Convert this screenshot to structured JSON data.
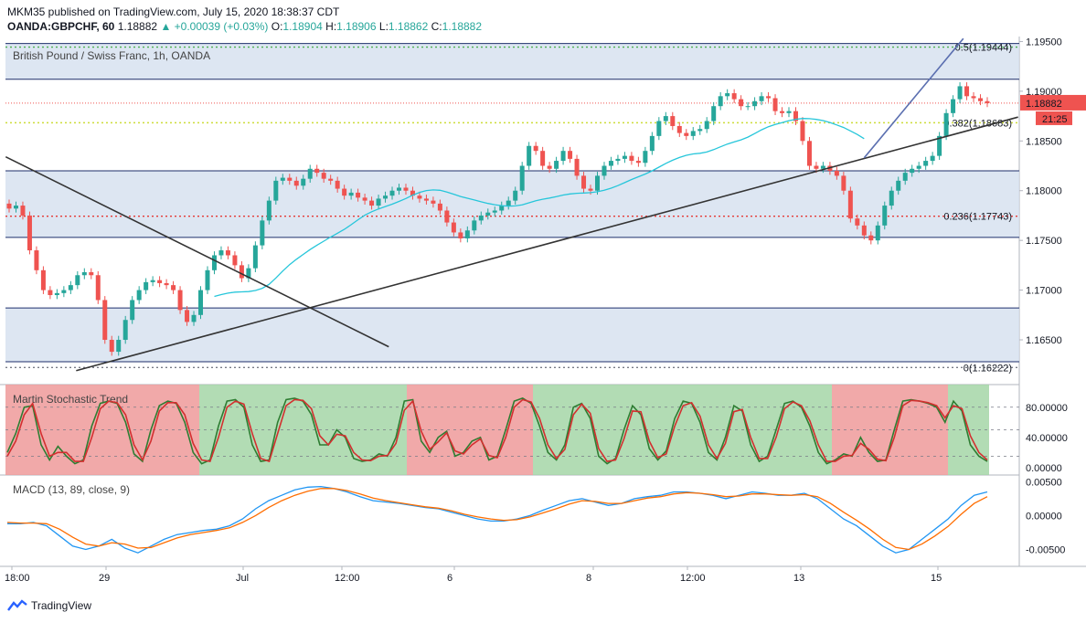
{
  "header": {
    "publisher": "MKM35 published on TradingView.com, July 15, 2020 18:38:37 CDT",
    "symbol": "OANDA:GBPCHF, 60",
    "last": "1.18882",
    "change": "▲ +0.00039 (+0.03%)",
    "o_label": "O:",
    "o_value": "1.18904",
    "h_label": "H:",
    "h_value": "1.18906",
    "l_label": "L:",
    "l_value": "1.18862",
    "c_label": "C:",
    "c_value": "1.18882"
  },
  "footer": {
    "brand": "TradingView"
  },
  "colors": {
    "up": "#26a69a",
    "down": "#ef5350",
    "zone": "#d5e0ef",
    "fib_green": "#4caf50",
    "fib_yellow": "#cddc39",
    "fib_red": "#e53935"
  },
  "chart_data": [
    {
      "type": "line",
      "title": "British Pound / Swiss Franc, 1h, OANDA",
      "x_ticks": [
        "18:00",
        "29",
        "Jul",
        "12:00",
        "6",
        "8",
        "12:00",
        "13",
        "15"
      ],
      "y_ticks": [
        "1.19500",
        "1.19000",
        "1.18500",
        "1.18000",
        "1.17500",
        "1.17000",
        "1.16500"
      ],
      "ylim": [
        1.1605,
        1.1955
      ],
      "last_price_label": "1.18882",
      "countdown_label": "21:25",
      "fib_levels": [
        {
          "label": "0.5(1.19444)",
          "value": 1.19444,
          "color": "#4caf50"
        },
        {
          "label": "0.382(1.18683)",
          "value": 1.18683,
          "color": "#cddc39"
        },
        {
          "label": "0.236(1.17743)",
          "value": 1.17743,
          "color": "#e53935"
        },
        {
          "label": "0(1.16222)",
          "value": 1.16222,
          "color": "#787b86"
        }
      ],
      "zones": [
        [
          1.1912,
          1.1948
        ],
        [
          1.1753,
          1.182
        ],
        [
          1.1628,
          1.1682
        ]
      ],
      "price_close": [
        1.1782,
        1.1785,
        1.1775,
        1.174,
        1.172,
        1.17,
        1.1695,
        1.1697,
        1.17,
        1.1705,
        1.1715,
        1.1718,
        1.1715,
        1.169,
        1.165,
        1.1638,
        1.165,
        1.167,
        1.169,
        1.17,
        1.1708,
        1.171,
        1.1707,
        1.1705,
        1.17,
        1.168,
        1.1668,
        1.1675,
        1.17,
        1.172,
        1.1735,
        1.174,
        1.1735,
        1.1725,
        1.1712,
        1.1722,
        1.1745,
        1.177,
        1.179,
        1.181,
        1.1813,
        1.181,
        1.1805,
        1.1812,
        1.1822,
        1.1818,
        1.1812,
        1.181,
        1.1802,
        1.1795,
        1.1798,
        1.1793,
        1.179,
        1.1785,
        1.1792,
        1.1795,
        1.18,
        1.1803,
        1.18,
        1.1795,
        1.1792,
        1.179,
        1.1787,
        1.178,
        1.1768,
        1.1758,
        1.1752,
        1.176,
        1.177,
        1.1775,
        1.1778,
        1.178,
        1.1785,
        1.179,
        1.18,
        1.1825,
        1.1845,
        1.184,
        1.1825,
        1.1822,
        1.183,
        1.184,
        1.1832,
        1.1815,
        1.1802,
        1.18,
        1.1815,
        1.1825,
        1.183,
        1.1832,
        1.1835,
        1.183,
        1.1828,
        1.184,
        1.1855,
        1.187,
        1.1875,
        1.1865,
        1.1858,
        1.1855,
        1.186,
        1.1862,
        1.187,
        1.1885,
        1.1895,
        1.1898,
        1.1892,
        1.1885,
        1.1885,
        1.189,
        1.1895,
        1.1893,
        1.188,
        1.1878,
        1.188,
        1.187,
        1.185,
        1.1825,
        1.1822,
        1.1825,
        1.182,
        1.1815,
        1.18,
        1.1772,
        1.1765,
        1.1755,
        1.175,
        1.1765,
        1.1785,
        1.18,
        1.181,
        1.1818,
        1.1822,
        1.1825,
        1.183,
        1.1835,
        1.1855,
        1.1878,
        1.1892,
        1.1905,
        1.1895,
        1.1893,
        1.189,
        1.1888
      ]
    },
    {
      "type": "line",
      "title": "Martin Stochastic Trend",
      "y_ticks": [
        "80.00000",
        "40.00000",
        "0.00000"
      ],
      "ylim": [
        -10,
        110
      ],
      "series": [
        {
          "values": [
            20,
            45,
            80,
            82,
            30,
            10,
            28,
            15,
            5,
            10,
            55,
            85,
            88,
            85,
            60,
            18,
            8,
            50,
            82,
            88,
            85,
            60,
            20,
            5,
            10,
            55,
            88,
            90,
            80,
            30,
            8,
            10,
            60,
            90,
            92,
            88,
            70,
            30,
            30,
            50,
            40,
            12,
            8,
            10,
            18,
            15,
            40,
            88,
            90,
            35,
            20,
            40,
            48,
            15,
            20,
            35,
            40,
            10,
            15,
            50,
            88,
            92,
            85,
            55,
            20,
            10,
            30,
            80,
            85,
            65,
            15,
            5,
            12,
            50,
            82,
            70,
            25,
            10,
            22,
            65,
            88,
            85,
            60,
            20,
            10,
            40,
            82,
            75,
            30,
            8,
            15,
            50,
            85,
            88,
            80,
            55,
            20,
            5,
            10,
            18,
            15,
            40,
            20,
            8,
            10,
            50,
            88,
            90,
            88,
            85,
            80,
            60,
            88,
            75,
            30,
            15,
            8
          ]
        },
        {
          "values": [
            15,
            35,
            70,
            85,
            45,
            15,
            20,
            20,
            8,
            8,
            40,
            78,
            88,
            86,
            70,
            30,
            10,
            35,
            75,
            86,
            86,
            70,
            32,
            10,
            8,
            40,
            80,
            88,
            84,
            45,
            12,
            8,
            45,
            82,
            90,
            89,
            78,
            42,
            30,
            44,
            42,
            20,
            10,
            9,
            15,
            16,
            32,
            76,
            88,
            48,
            24,
            34,
            46,
            22,
            18,
            30,
            38,
            16,
            13,
            40,
            80,
            90,
            87,
            65,
            30,
            12,
            24,
            70,
            84,
            72,
            25,
            8,
            10,
            38,
            75,
            74,
            35,
            13,
            18,
            55,
            82,
            86,
            68,
            30,
            12,
            32,
            74,
            77,
            40,
            12,
            12,
            40,
            78,
            87,
            82,
            62,
            30,
            8,
            8,
            15,
            16,
            32,
            24,
            11,
            9,
            40,
            82,
            89,
            88,
            86,
            82,
            66,
            82,
            78,
            42,
            20,
            10
          ]
        }
      ],
      "trend_bands": [
        "down",
        "up",
        "down",
        "up",
        "down",
        "up",
        "down"
      ]
    },
    {
      "type": "line",
      "title": "MACD (13, 89, close, 9)",
      "y_ticks": [
        "0.00500",
        "0.00000",
        "-0.00500"
      ],
      "ylim": [
        -0.0075,
        0.006
      ],
      "series": [
        {
          "values": [
            -0.0012,
            -0.0012,
            -0.001,
            -0.0015,
            -0.003,
            -0.0045,
            -0.005,
            -0.0045,
            -0.0035,
            -0.0048,
            -0.0055,
            -0.0045,
            -0.0035,
            -0.0028,
            -0.0025,
            -0.0022,
            -0.002,
            -0.0015,
            -0.0005,
            0.001,
            0.0022,
            0.003,
            0.0038,
            0.0042,
            0.0043,
            0.004,
            0.0035,
            0.0028,
            0.0022,
            0.002,
            0.0018,
            0.0015,
            0.0012,
            0.001,
            0.0005,
            0.0,
            -0.0005,
            -0.0008,
            -0.0008,
            -0.0005,
            0.0,
            0.0008,
            0.0015,
            0.0022,
            0.0025,
            0.002,
            0.0015,
            0.0018,
            0.0025,
            0.0028,
            0.003,
            0.0035,
            0.0035,
            0.0033,
            0.003,
            0.0025,
            0.003,
            0.0035,
            0.0033,
            0.003,
            0.003,
            0.0033,
            0.0025,
            0.001,
            -0.0005,
            -0.0015,
            -0.003,
            -0.0045,
            -0.0055,
            -0.005,
            -0.0035,
            -0.002,
            -0.0005,
            0.0015,
            0.003,
            0.0035
          ]
        },
        {
          "values": [
            -0.001,
            -0.0011,
            -0.0011,
            -0.0012,
            -0.002,
            -0.0032,
            -0.0042,
            -0.0045,
            -0.004,
            -0.0042,
            -0.0048,
            -0.0047,
            -0.004,
            -0.0033,
            -0.0028,
            -0.0025,
            -0.0022,
            -0.0018,
            -0.001,
            0.0,
            0.0012,
            0.0022,
            0.003,
            0.0036,
            0.004,
            0.004,
            0.0037,
            0.0032,
            0.0026,
            0.0022,
            0.0019,
            0.0016,
            0.0013,
            0.0011,
            0.0007,
            0.0002,
            -0.0002,
            -0.0005,
            -0.0007,
            -0.0006,
            -0.0002,
            0.0004,
            0.001,
            0.0017,
            0.0022,
            0.0021,
            0.0018,
            0.0018,
            0.0022,
            0.0026,
            0.0028,
            0.0032,
            0.0034,
            0.0033,
            0.0031,
            0.0028,
            0.0029,
            0.0032,
            0.0032,
            0.0031,
            0.003,
            0.0031,
            0.0028,
            0.0018,
            0.0005,
            -0.0007,
            -0.002,
            -0.0035,
            -0.0047,
            -0.005,
            -0.0042,
            -0.003,
            -0.0016,
            0.0002,
            0.0018,
            0.0028
          ]
        }
      ]
    }
  ]
}
